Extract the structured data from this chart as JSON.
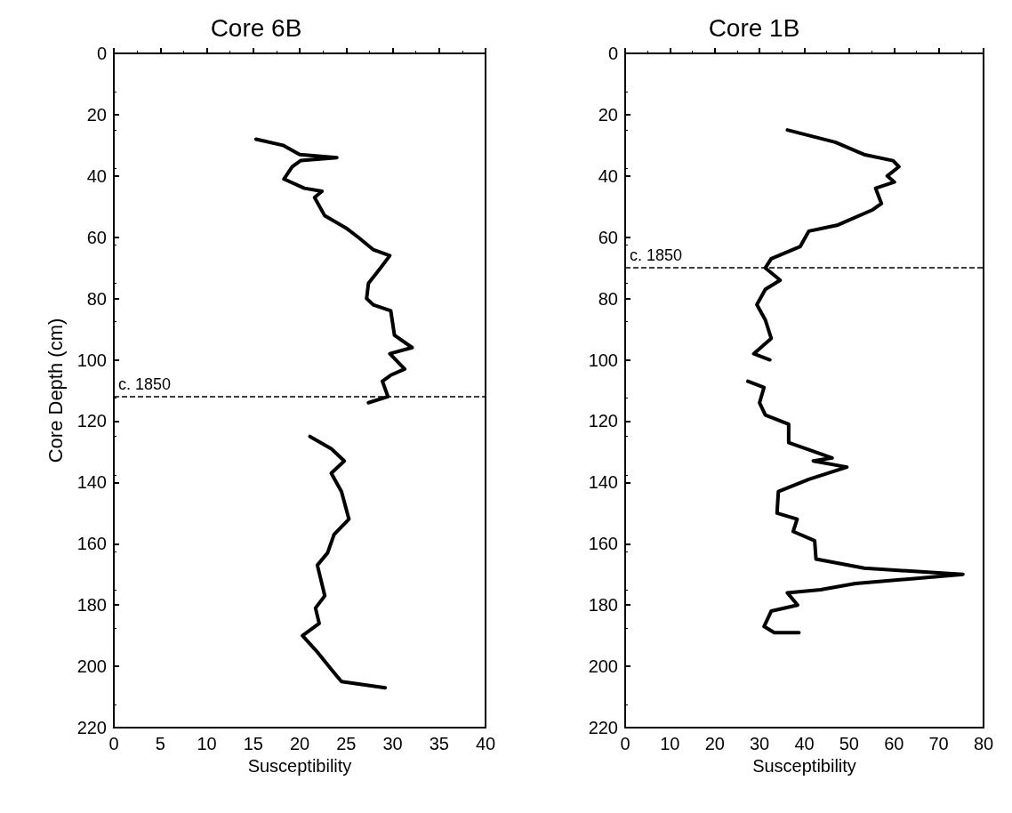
{
  "chart_data": [
    {
      "type": "line",
      "title": "Core 6B",
      "xlabel": "Susceptibility",
      "ylabel": "Core Depth (cm)",
      "xlim": [
        0,
        40
      ],
      "xticks": [
        0,
        5,
        10,
        15,
        20,
        25,
        30,
        35,
        40
      ],
      "ylim": [
        220,
        0
      ],
      "yticks": [
        0,
        20,
        40,
        60,
        80,
        100,
        120,
        140,
        160,
        180,
        200,
        220
      ],
      "line_style": "solid",
      "ref_lines": [
        {
          "axis": "y",
          "value": 112,
          "label": "c. 1850",
          "line_style": "dashed",
          "color": "#000000"
        }
      ],
      "series": [
        {
          "color": "#000000",
          "x": [
            15.3,
            18.2,
            20.0,
            24.0,
            20.1,
            19.2,
            18.3,
            20.5,
            22.4,
            21.6,
            22.7,
            25.0,
            26.3,
            27.9,
            29.7,
            28.7,
            27.4,
            27.2,
            27.9,
            29.8,
            30.2,
            32.1,
            29.7,
            31.3,
            29.8,
            28.9,
            29.5,
            27.4,
            null,
            21.1,
            23.4,
            24.8,
            23.4,
            24.5,
            25.3,
            23.7,
            23.0,
            21.9,
            22.7,
            21.7,
            22.1,
            20.3,
            21.8,
            23.4,
            24.5,
            29.2
          ],
          "values": [
            28,
            30,
            33,
            34,
            35,
            37,
            41,
            44,
            45,
            47,
            53,
            57,
            60,
            64,
            66,
            70,
            75,
            80,
            82,
            84,
            92,
            96,
            98,
            103,
            105,
            107,
            112,
            114,
            null,
            125,
            129,
            133,
            137,
            143,
            152,
            157,
            163,
            167,
            177,
            181,
            186,
            190,
            195,
            201,
            205,
            207
          ]
        }
      ]
    },
    {
      "type": "line",
      "title": "Core 1B",
      "xlabel": "Susceptibility",
      "xlim": [
        0,
        80
      ],
      "xticks": [
        0,
        10,
        20,
        30,
        40,
        50,
        60,
        70,
        80
      ],
      "ylim": [
        220,
        0
      ],
      "yticks": [
        0,
        20,
        40,
        60,
        80,
        100,
        120,
        140,
        160,
        180,
        200,
        220
      ],
      "line_style": "solid",
      "ref_lines": [
        {
          "axis": "y",
          "value": 70,
          "label": "c. 1850",
          "line_style": "dashed",
          "color": "#000000"
        }
      ],
      "series": [
        {
          "color": "#000000",
          "x": [
            36.2,
            46.9,
            53.3,
            59.8,
            61.1,
            58.5,
            60.1,
            55.9,
            57.2,
            55.3,
            47.5,
            41.0,
            39.1,
            32.6,
            31.3,
            34.6,
            31.3,
            29.4,
            31.3,
            32.6,
            28.7,
            32.3,
            null,
            27.4,
            31.0,
            30.0,
            31.3,
            36.5,
            36.5,
            42.3,
            46.2,
            42.0,
            49.5,
            41.0,
            34.2,
            33.9,
            38.4,
            37.5,
            42.3,
            42.6,
            53.4,
            75.4,
            51.4,
            43.6,
            36.2,
            38.5,
            32.6,
            31.0,
            33.3,
            38.8
          ],
          "values": [
            25,
            29,
            33,
            35,
            37,
            40,
            42,
            44,
            49,
            51,
            56,
            58,
            63,
            67,
            70,
            74,
            77,
            82,
            87,
            93,
            98,
            100,
            null,
            107,
            109,
            114,
            118,
            121,
            127,
            130,
            132,
            133,
            135,
            139,
            143,
            150,
            152,
            156,
            159,
            165,
            168,
            170,
            173,
            175,
            176,
            180,
            182,
            187,
            189,
            189
          ]
        }
      ]
    }
  ]
}
